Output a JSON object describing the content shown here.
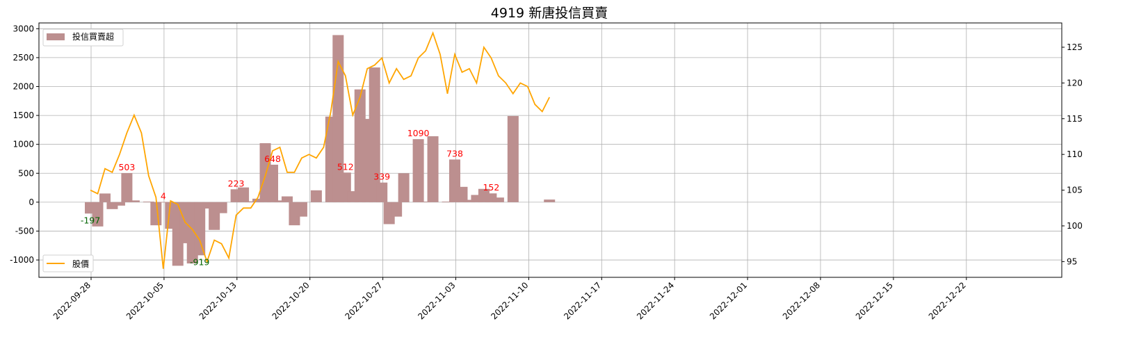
{
  "chart_data": {
    "type": "bar+line",
    "title": "4919 新唐投信買賣",
    "colors": {
      "bar": "#bc8f8f",
      "line": "#ffa500",
      "annotation_pos": "#ff0000",
      "annotation_neg": "#006400",
      "grid": "#b0b0b0"
    },
    "grid": true,
    "x_tick_labels": [
      "2022-09-28",
      "2022-10-05",
      "2022-10-13",
      "2022-10-20",
      "2022-10-27",
      "2022-11-03",
      "2022-11-10",
      "2022-11-17",
      "2022-11-24",
      "2022-12-01",
      "2022-12-08",
      "2022-12-15",
      "2022-12-22"
    ],
    "y_left": {
      "ylim": [
        -1300,
        3100
      ],
      "ticks": [
        -1000,
        -500,
        0,
        500,
        1000,
        1500,
        2000,
        2500,
        3000
      ]
    },
    "y_right": {
      "ylim": [
        92.8,
        128.4
      ],
      "ticks": [
        95,
        100,
        105,
        110,
        115,
        120,
        125
      ]
    },
    "series": [
      {
        "name": "投信買賣超",
        "kind": "bar",
        "legend_position": "upper-left",
        "values": [
          -197,
          -420,
          150,
          -120,
          -60,
          503,
          30,
          0,
          10,
          -400,
          4,
          -460,
          -1100,
          -710,
          -1060,
          -919,
          -110,
          -480,
          -190,
          0,
          223,
          255,
          15,
          60,
          1020,
          648,
          30,
          100,
          -400,
          -250,
          0,
          205,
          0,
          1480,
          2890,
          512,
          190,
          1950,
          1440,
          2330,
          339,
          -380,
          -250,
          500,
          0,
          1090,
          10,
          1140,
          0,
          10,
          738,
          265,
          40,
          125,
          230,
          152,
          80,
          0,
          1490,
          0,
          0,
          0,
          0,
          45
        ]
      },
      {
        "name": "股價",
        "kind": "line",
        "axis": "right",
        "legend_position": "lower-left",
        "values": [
          105,
          104.5,
          108,
          107.5,
          110,
          113,
          115.5,
          113,
          107,
          104,
          94,
          103.5,
          103,
          100.5,
          99.5,
          98,
          95,
          98,
          97.5,
          95.5,
          101.5,
          102.5,
          102.5,
          104,
          107,
          110.5,
          111,
          107.5,
          107.5,
          109.5,
          110,
          109.5,
          111,
          116,
          123,
          121,
          115.5,
          118,
          122,
          122.5,
          123.5,
          120,
          122,
          120.5,
          121,
          123.5,
          124.5,
          127,
          124,
          118.5,
          124,
          121.5,
          122,
          120,
          125,
          123.5,
          121,
          120,
          118.5,
          120,
          119.5,
          117,
          116,
          118
        ]
      }
    ],
    "annotations": [
      {
        "index": 0,
        "text": "-197",
        "sign": "neg"
      },
      {
        "index": 5,
        "text": "503",
        "sign": "pos"
      },
      {
        "index": 10,
        "text": "4",
        "sign": "pos"
      },
      {
        "index": 15,
        "text": "-919",
        "sign": "neg"
      },
      {
        "index": 20,
        "text": "223",
        "sign": "pos"
      },
      {
        "index": 25,
        "text": "648",
        "sign": "pos"
      },
      {
        "index": 35,
        "text": "512",
        "sign": "pos"
      },
      {
        "index": 40,
        "text": "339",
        "sign": "pos"
      },
      {
        "index": 45,
        "text": "1090",
        "sign": "pos"
      },
      {
        "index": 50,
        "text": "738",
        "sign": "pos"
      },
      {
        "index": 55,
        "text": "152",
        "sign": "pos"
      }
    ]
  }
}
